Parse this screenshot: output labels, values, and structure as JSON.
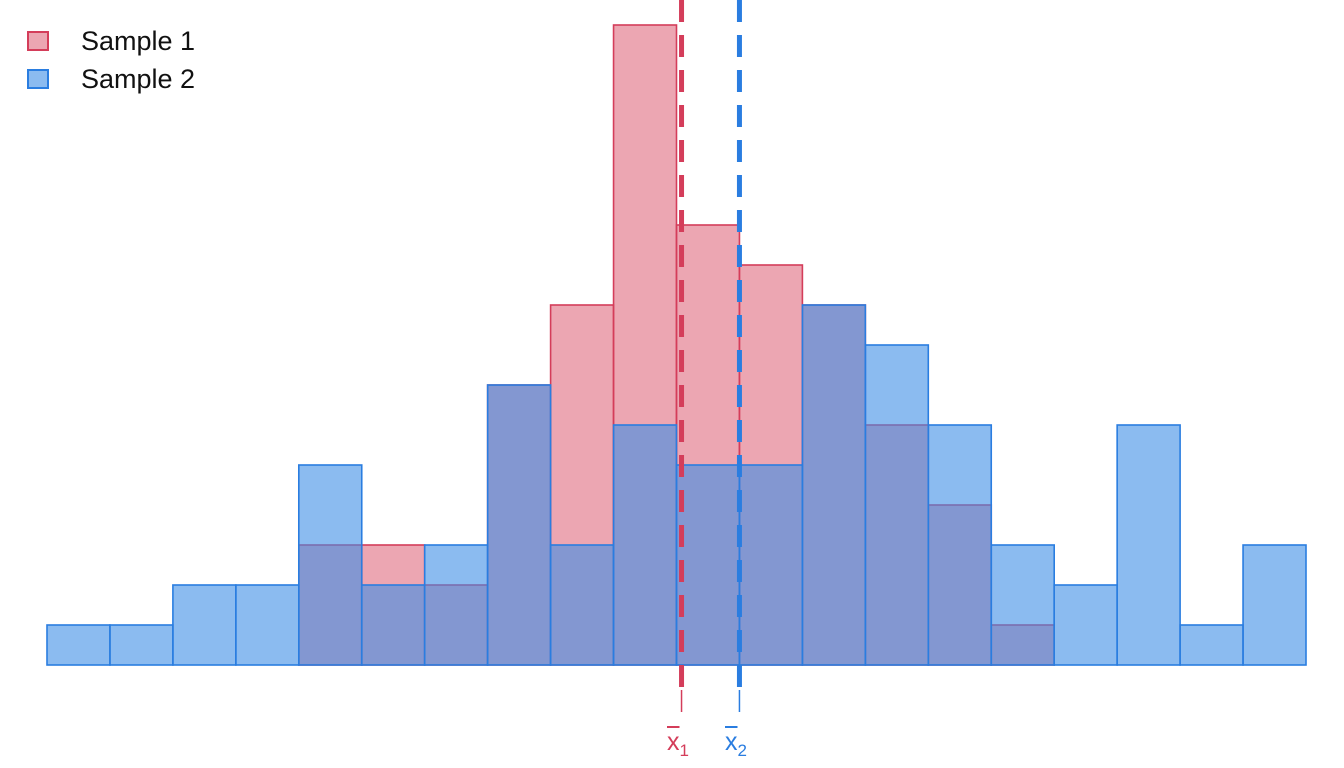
{
  "chart_data": {
    "type": "histogram",
    "bin_edges": [
      -10,
      -9,
      -8,
      -7,
      -6,
      -5,
      -4,
      -3,
      -2,
      -1,
      0,
      1,
      2,
      3,
      4,
      5,
      6,
      7,
      8,
      9,
      10
    ],
    "series": [
      {
        "name": "Sample 1",
        "counts": [
          0,
          0,
          0,
          0,
          3,
          3,
          2,
          7,
          9,
          16,
          11,
          10,
          9,
          6,
          4,
          1,
          0,
          0,
          0,
          0
        ],
        "fill": "#e06b7f",
        "stroke": "#d43d5a",
        "mean": 0.08
      },
      {
        "name": "Sample 2",
        "counts": [
          1,
          1,
          2,
          2,
          5,
          2,
          3,
          7,
          3,
          6,
          5,
          5,
          9,
          8,
          6,
          3,
          2,
          6,
          1,
          3
        ],
        "fill": "#3d8ee6",
        "stroke": "#2a7de0",
        "mean": 1.0
      }
    ],
    "ylim": [
      0,
      16
    ],
    "grid": false,
    "legend_position": "top-left",
    "mean_labels": [
      {
        "symbol": "x",
        "subscript": "1",
        "color": "#d43d5a"
      },
      {
        "symbol": "x",
        "subscript": "2",
        "color": "#2a7de0"
      }
    ]
  }
}
